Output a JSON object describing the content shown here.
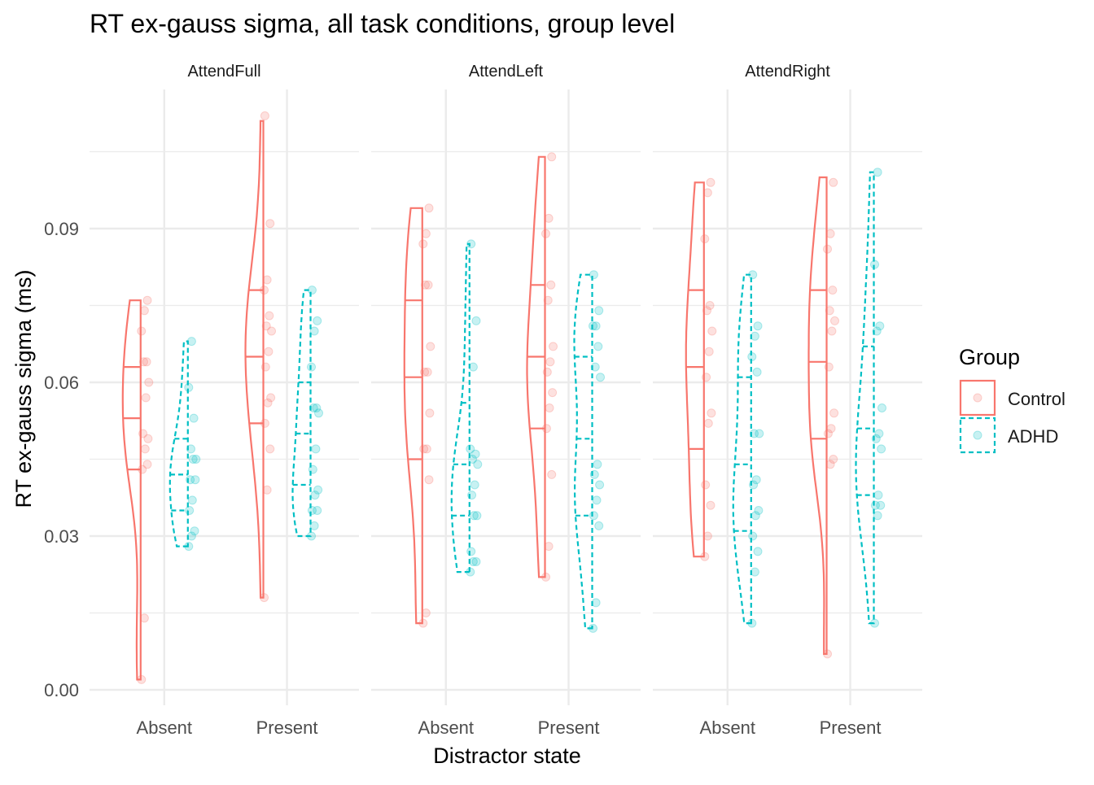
{
  "chart_data": {
    "type": "violin",
    "title": "RT ex-gauss sigma, all task conditions, group level",
    "xlabel": "Distractor state",
    "ylabel": "RT ex-gauss sigma (ms)",
    "ylim": [
      -0.003,
      0.118
    ],
    "y_ticks": [
      0.0,
      0.03,
      0.06,
      0.09
    ],
    "y_tick_labels": [
      "0.00",
      "0.03",
      "0.06",
      "0.09"
    ],
    "categories": [
      "Absent",
      "Present"
    ],
    "grid": true,
    "legend": {
      "title": "Group",
      "position": "right",
      "entries": [
        {
          "name": "Control",
          "color": "#F8766D",
          "linetype": "solid"
        },
        {
          "name": "ADHD",
          "color": "#00BFC4",
          "linetype": "dashed"
        }
      ]
    },
    "panels": [
      {
        "name": "AttendFull",
        "groups": [
          {
            "category": "Absent",
            "group": "Control",
            "min": 0.002,
            "max": 0.076,
            "q1": 0.043,
            "median": 0.053,
            "q3": 0.063,
            "points": [
              0.002,
              0.014,
              0.044,
              0.043,
              0.047,
              0.049,
              0.05,
              0.057,
              0.06,
              0.064,
              0.064,
              0.07,
              0.074,
              0.076
            ]
          },
          {
            "category": "Absent",
            "group": "ADHD",
            "min": 0.028,
            "max": 0.068,
            "q1": 0.035,
            "median": 0.042,
            "q3": 0.049,
            "points": [
              0.028,
              0.03,
              0.031,
              0.035,
              0.037,
              0.041,
              0.041,
              0.045,
              0.045,
              0.047,
              0.053,
              0.059,
              0.068
            ]
          },
          {
            "category": "Present",
            "group": "Control",
            "min": 0.018,
            "max": 0.111,
            "q1": 0.052,
            "median": 0.065,
            "q3": 0.078,
            "points": [
              0.018,
              0.039,
              0.047,
              0.052,
              0.056,
              0.057,
              0.063,
              0.066,
              0.07,
              0.071,
              0.073,
              0.078,
              0.08,
              0.091,
              0.112
            ]
          },
          {
            "category": "Present",
            "group": "ADHD",
            "min": 0.03,
            "max": 0.078,
            "q1": 0.04,
            "median": 0.05,
            "q3": 0.06,
            "points": [
              0.03,
              0.032,
              0.035,
              0.035,
              0.038,
              0.039,
              0.043,
              0.047,
              0.054,
              0.055,
              0.055,
              0.063,
              0.07,
              0.072,
              0.078
            ]
          }
        ]
      },
      {
        "name": "AttendLeft",
        "groups": [
          {
            "category": "Absent",
            "group": "Control",
            "min": 0.013,
            "max": 0.094,
            "q1": 0.045,
            "median": 0.061,
            "q3": 0.076,
            "points": [
              0.013,
              0.015,
              0.041,
              0.047,
              0.047,
              0.054,
              0.062,
              0.062,
              0.067,
              0.079,
              0.079,
              0.087,
              0.089,
              0.094
            ]
          },
          {
            "category": "Absent",
            "group": "ADHD",
            "min": 0.023,
            "max": 0.087,
            "q1": 0.034,
            "median": 0.044,
            "q3": 0.056,
            "points": [
              0.023,
              0.025,
              0.025,
              0.027,
              0.034,
              0.034,
              0.038,
              0.04,
              0.044,
              0.045,
              0.046,
              0.047,
              0.063,
              0.072,
              0.087
            ]
          },
          {
            "category": "Present",
            "group": "Control",
            "min": 0.022,
            "max": 0.104,
            "q1": 0.051,
            "median": 0.065,
            "q3": 0.079,
            "points": [
              0.022,
              0.028,
              0.042,
              0.051,
              0.055,
              0.058,
              0.062,
              0.064,
              0.067,
              0.076,
              0.079,
              0.089,
              0.092,
              0.104
            ]
          },
          {
            "category": "Present",
            "group": "ADHD",
            "min": 0.012,
            "max": 0.081,
            "q1": 0.034,
            "median": 0.049,
            "q3": 0.065,
            "points": [
              0.012,
              0.017,
              0.032,
              0.034,
              0.037,
              0.04,
              0.042,
              0.044,
              0.061,
              0.063,
              0.067,
              0.071,
              0.071,
              0.074,
              0.081
            ]
          }
        ]
      },
      {
        "name": "AttendRight",
        "groups": [
          {
            "category": "Absent",
            "group": "Control",
            "min": 0.026,
            "max": 0.099,
            "q1": 0.047,
            "median": 0.063,
            "q3": 0.078,
            "points": [
              0.026,
              0.03,
              0.036,
              0.04,
              0.052,
              0.054,
              0.061,
              0.066,
              0.07,
              0.074,
              0.075,
              0.088,
              0.097,
              0.099
            ]
          },
          {
            "category": "Absent",
            "group": "ADHD",
            "min": 0.013,
            "max": 0.081,
            "q1": 0.031,
            "median": 0.044,
            "q3": 0.061,
            "points": [
              0.013,
              0.023,
              0.027,
              0.03,
              0.034,
              0.035,
              0.04,
              0.041,
              0.05,
              0.05,
              0.062,
              0.065,
              0.069,
              0.071,
              0.081
            ]
          },
          {
            "category": "Present",
            "group": "Control",
            "min": 0.007,
            "max": 0.1,
            "q1": 0.049,
            "median": 0.064,
            "q3": 0.078,
            "points": [
              0.007,
              0.044,
              0.045,
              0.05,
              0.051,
              0.054,
              0.063,
              0.07,
              0.072,
              0.074,
              0.078,
              0.086,
              0.089,
              0.099
            ]
          },
          {
            "category": "Present",
            "group": "ADHD",
            "min": 0.013,
            "max": 0.101,
            "q1": 0.038,
            "median": 0.051,
            "q3": 0.067,
            "points": [
              0.013,
              0.034,
              0.036,
              0.036,
              0.038,
              0.047,
              0.049,
              0.05,
              0.055,
              0.07,
              0.071,
              0.083,
              0.101
            ]
          }
        ]
      }
    ]
  }
}
